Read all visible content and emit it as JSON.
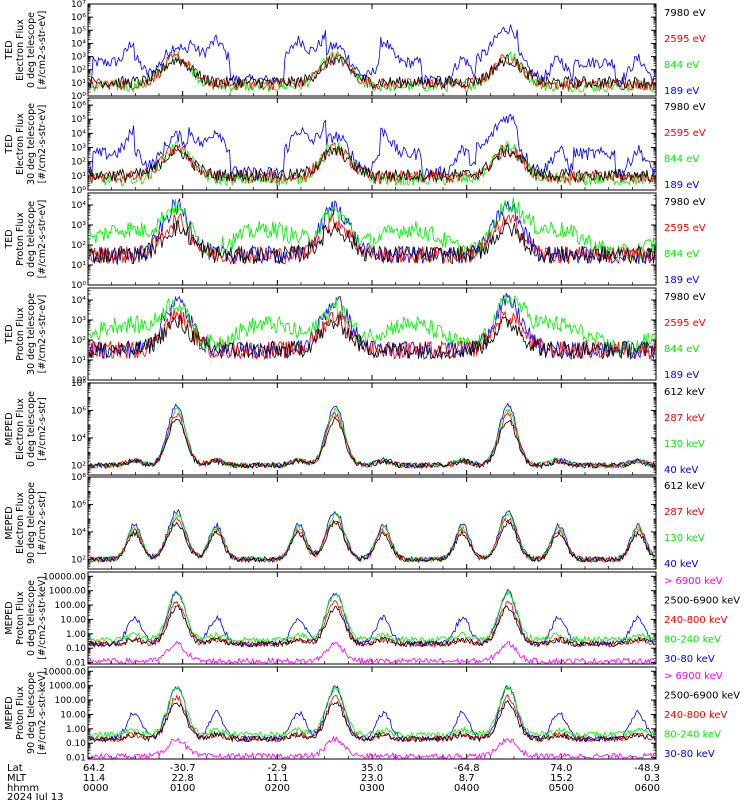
{
  "colors": {
    "blue": "#0000ff",
    "red": "#ff0000",
    "green": "#00ee00",
    "black": "#000000",
    "magenta": "#ff00ff"
  },
  "date_label": "2024 Jul 13",
  "chart_data": [
    {
      "type": "line",
      "ylabel": [
        "TED",
        "Electron Flux",
        "0 deg telescope",
        "[#/cm2-s-str-eV]"
      ],
      "log": true,
      "ytick_labels": [
        "10⁰",
        "10¹",
        "10²",
        "10³",
        "10⁴",
        "10⁵",
        "10⁶",
        "10⁷"
      ],
      "ytick_exps": [
        0,
        1,
        2,
        3,
        4,
        5,
        6,
        7
      ],
      "ylim": [
        0,
        7
      ],
      "series": [
        {
          "name": "7980 eV",
          "color": "black"
        },
        {
          "name": "2595 eV",
          "color": "red"
        },
        {
          "name": "844 eV",
          "color": "green"
        },
        {
          "name": "189 eV",
          "color": "blue"
        }
      ]
    },
    {
      "type": "line",
      "ylabel": [
        "TED",
        "Electron Flux",
        "30 deg telescope",
        "[#/cm2-s-str-eV]"
      ],
      "log": true,
      "ytick_labels": [
        "10⁰",
        "10¹",
        "10²",
        "10³",
        "10⁴",
        "10⁵",
        "10⁶"
      ],
      "ytick_exps": [
        0,
        1,
        2,
        3,
        4,
        5,
        6
      ],
      "ylim": [
        0,
        6.5
      ],
      "series": [
        {
          "name": "7980 eV",
          "color": "black"
        },
        {
          "name": "2595 eV",
          "color": "red"
        },
        {
          "name": "844 eV",
          "color": "green"
        },
        {
          "name": "189 eV",
          "color": "blue"
        }
      ]
    },
    {
      "type": "line",
      "ylabel": [
        "TED",
        "Proton Flux",
        "0 deg telescope",
        "[#/cm2-s-str-eV]"
      ],
      "log": true,
      "ytick_labels": [
        "10⁰",
        "10¹",
        "10²",
        "10³",
        "10⁴"
      ],
      "ytick_exps": [
        0,
        1,
        2,
        3,
        4
      ],
      "ylim": [
        0,
        4.6
      ],
      "series": [
        {
          "name": "7980 eV",
          "color": "black"
        },
        {
          "name": "2595 eV",
          "color": "red"
        },
        {
          "name": "844 eV",
          "color": "green"
        },
        {
          "name": "189 eV",
          "color": "blue"
        }
      ]
    },
    {
      "type": "line",
      "ylabel": [
        "TED",
        "Proton Flux",
        "30 deg telescope",
        "[#/cm2-s-str-eV]"
      ],
      "log": true,
      "ytick_labels": [
        "10⁰",
        "10¹",
        "10²",
        "10³",
        "10⁴"
      ],
      "ytick_exps": [
        0,
        1,
        2,
        3,
        4
      ],
      "ylim": [
        0,
        4.6
      ],
      "series": [
        {
          "name": "7980 eV",
          "color": "black"
        },
        {
          "name": "2595 eV",
          "color": "red"
        },
        {
          "name": "844 eV",
          "color": "green"
        },
        {
          "name": "189 eV",
          "color": "blue"
        }
      ]
    },
    {
      "type": "line",
      "ylabel": [
        "MEPED",
        "Electron Flux",
        "0 deg telescope",
        "[#/cm2-s-str]"
      ],
      "log": true,
      "ytick_labels": [
        "10²",
        "10⁴",
        "10⁶",
        "10⁸"
      ],
      "ytick_exps": [
        2,
        4,
        6,
        8
      ],
      "ylim": [
        1.3,
        8
      ],
      "series": [
        {
          "name": "612 keV",
          "color": "black"
        },
        {
          "name": "287 keV",
          "color": "red"
        },
        {
          "name": "130 keV",
          "color": "green"
        },
        {
          "name": "40 keV",
          "color": "blue"
        }
      ]
    },
    {
      "type": "line",
      "ylabel": [
        "MEPED",
        "Electron Flux",
        "90 deg telescope",
        "[#/cm2-s-str]"
      ],
      "log": true,
      "ytick_labels": [
        "10²",
        "10⁴",
        "10⁶",
        "10⁸"
      ],
      "ytick_exps": [
        2,
        4,
        6,
        8
      ],
      "ylim": [
        1.3,
        8
      ],
      "series": [
        {
          "name": "612 keV",
          "color": "black"
        },
        {
          "name": "287 keV",
          "color": "red"
        },
        {
          "name": "130 keV",
          "color": "green"
        },
        {
          "name": "40 keV",
          "color": "blue"
        }
      ]
    },
    {
      "type": "line",
      "ylabel": [
        "MEPED",
        "Proton Flux",
        "0 deg telescope",
        "[#/cm2-s-str-keV]"
      ],
      "log": true,
      "ytick_labels": [
        "0.01",
        "0.10",
        "1.00",
        "10.00",
        "100.00",
        "1000.00",
        "10000.00"
      ],
      "ytick_exps": [
        -2,
        -1,
        0,
        1,
        2,
        3,
        4
      ],
      "ylim": [
        -2.1,
        4.3
      ],
      "series": [
        {
          "name": "> 6900 keV",
          "color": "magenta"
        },
        {
          "name": "2500-6900 keV",
          "color": "black"
        },
        {
          "name": "240-800 keV",
          "color": "red"
        },
        {
          "name": "80-240 keV",
          "color": "green"
        },
        {
          "name": "30-80 keV",
          "color": "blue"
        }
      ]
    },
    {
      "type": "line",
      "ylabel": [
        "MEPED",
        "Proton Flux",
        "90 deg telescope",
        "[#/cm2-s-str-keV]"
      ],
      "log": true,
      "ytick_labels": [
        "0.01",
        "0.10",
        "1.00",
        "10.00",
        "100.00",
        "1000.00",
        "10000.00"
      ],
      "ytick_exps": [
        -2,
        -1,
        0,
        1,
        2,
        3,
        4
      ],
      "ylim": [
        -2.1,
        4.3
      ],
      "series": [
        {
          "name": "> 6900 keV",
          "color": "magenta"
        },
        {
          "name": "2500-6900 keV",
          "color": "black"
        },
        {
          "name": "240-800 keV",
          "color": "red"
        },
        {
          "name": "80-240 keV",
          "color": "green"
        },
        {
          "name": "30-80 keV",
          "color": "blue"
        }
      ]
    }
  ],
  "x_axis": {
    "row_labels": [
      "Lat",
      "MLT",
      "hhmm"
    ],
    "ticks": [
      {
        "lat": "64.2",
        "mlt": "11.4",
        "hhmm": "0000"
      },
      {
        "lat": "-30.7",
        "mlt": "22.8",
        "hhmm": "0100"
      },
      {
        "lat": "-2.9",
        "mlt": "11.1",
        "hhmm": "0200"
      },
      {
        "lat": "35.0",
        "mlt": "23.0",
        "hhmm": "0300"
      },
      {
        "lat": "-64.8",
        "mlt": "8.7",
        "hhmm": "0400"
      },
      {
        "lat": "74.0",
        "mlt": "15.2",
        "hhmm": "0500"
      },
      {
        "lat": "-48.9",
        "mlt": "0.3",
        "hhmm": "0600"
      }
    ]
  }
}
